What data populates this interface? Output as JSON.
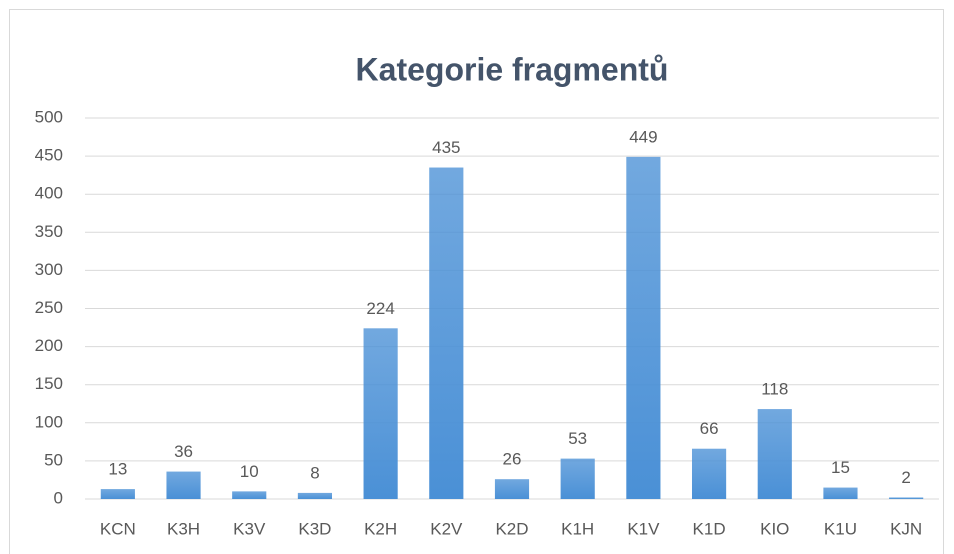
{
  "chart_data": {
    "type": "bar",
    "title": "Kategorie fragmentů",
    "categories": [
      "KCN",
      "K3H",
      "K3V",
      "K3D",
      "K2H",
      "K2V",
      "K2D",
      "K1H",
      "K1V",
      "K1D",
      "KIO",
      "K1U",
      "KJN"
    ],
    "values": [
      13,
      36,
      10,
      8,
      224,
      435,
      26,
      53,
      449,
      66,
      118,
      15,
      2
    ],
    "color": "#4a90d6",
    "ylim": [
      0,
      500
    ],
    "yticks": [
      0,
      50,
      100,
      150,
      200,
      250,
      300,
      350,
      400,
      450,
      500
    ],
    "grid": true
  }
}
